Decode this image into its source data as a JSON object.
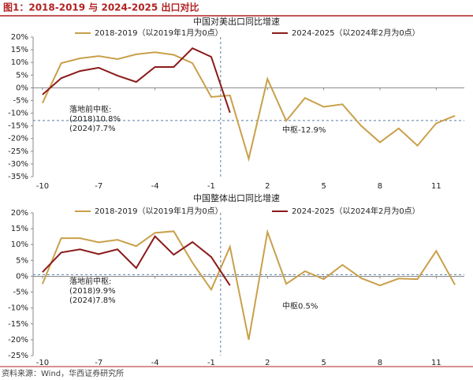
{
  "header": {
    "title": "图1：2018-2019 与 2024-2025 出口对比"
  },
  "footer": {
    "source": "资料来源：Wind，华西证券研究所"
  },
  "chart_data": [
    {
      "type": "line",
      "title": "中国对美出口同比增速",
      "x": [
        -10,
        -9,
        -8,
        -7,
        -6,
        -5,
        -4,
        -3,
        -2,
        -1,
        0,
        1,
        2,
        3,
        4,
        5,
        6,
        7,
        8,
        9,
        10,
        11,
        12
      ],
      "series": [
        {
          "name": "2018-2019（以2019年1月为0点）",
          "color": "#c9a04a",
          "values": [
            -6,
            9.7,
            11.6,
            12.5,
            11.3,
            13.2,
            14,
            13,
            9.7,
            -3.6,
            -3,
            -28,
            3.5,
            -13,
            -4,
            -7.5,
            -6.5,
            -15,
            -21.5,
            -16,
            -22.8,
            -14,
            -11
          ]
        },
        {
          "name": "2024-2025（以2024年2月为0点）",
          "color": "#8b1a1a",
          "values": [
            -2.7,
            3.8,
            6.6,
            7.9,
            4.8,
            2.3,
            8.2,
            8.2,
            15.6,
            12.2,
            -9.8,
            null,
            null,
            null,
            null,
            null,
            null,
            null,
            null,
            null,
            null,
            null,
            null
          ]
        }
      ],
      "xlim": [
        -10.5,
        12.5
      ],
      "ylim": [
        -35,
        20
      ],
      "xticks": [
        -10,
        -7,
        -4,
        -1,
        2,
        5,
        8,
        11
      ],
      "yticks": [
        {
          "value": 20,
          "label": "20%"
        },
        {
          "value": 15,
          "label": "15%"
        },
        {
          "value": 10,
          "label": "10%"
        },
        {
          "value": 5,
          "label": "5%"
        },
        {
          "value": 0,
          "label": "0%"
        },
        {
          "value": -5,
          "label": "-5%"
        },
        {
          "value": -10,
          "label": "-10%"
        },
        {
          "value": -15,
          "label": "-15%"
        },
        {
          "value": -20,
          "label": "-20%"
        },
        {
          "value": -25,
          "label": "-25%"
        },
        {
          "value": -30,
          "label": "-30%"
        },
        {
          "value": -35,
          "label": "-35%"
        }
      ],
      "reference_line": {
        "value": -12.9,
        "label": "中枢-12.9%"
      },
      "vline": -0.5,
      "annotations": [
        "落地前中枢:",
        "(2018)10.8%",
        "(2024)7.7%"
      ]
    },
    {
      "type": "line",
      "title": "中国整体出口同比增速",
      "x": [
        -10,
        -9,
        -8,
        -7,
        -6,
        -5,
        -4,
        -3,
        -2,
        -1,
        0,
        1,
        2,
        3,
        4,
        5,
        6,
        7,
        8,
        9,
        10,
        11,
        12
      ],
      "series": [
        {
          "name": "2018-2019（以2019年1月为0点）",
          "color": "#c9a04a",
          "values": [
            -2.4,
            12,
            12,
            10.7,
            11.5,
            9.5,
            13.7,
            14.2,
            4.3,
            -4.2,
            9.3,
            -20,
            14,
            -2.4,
            1.6,
            -0.9,
            3.6,
            -0.6,
            -2.9,
            -0.7,
            -0.9,
            8,
            -2.7
          ]
        },
        {
          "name": "2024-2025（以2024年2月为0点）",
          "color": "#8b1a1a",
          "values": [
            1.3,
            7.5,
            8.5,
            7,
            8.5,
            2.6,
            12.6,
            6.8,
            10.8,
            6.1,
            -2.9,
            null,
            null,
            null,
            null,
            null,
            null,
            null,
            null,
            null,
            null,
            null,
            null
          ]
        }
      ],
      "xlim": [
        -10.5,
        12.5
      ],
      "ylim": [
        -25,
        20
      ],
      "xticks": [
        -10,
        -7,
        -4,
        -1,
        2,
        5,
        8,
        11
      ],
      "yticks": [
        {
          "value": 20,
          "label": "20%"
        },
        {
          "value": 15,
          "label": "15%"
        },
        {
          "value": 10,
          "label": "10%"
        },
        {
          "value": 5,
          "label": "5%"
        },
        {
          "value": 0,
          "label": "0%"
        },
        {
          "value": -5,
          "label": "-5%"
        },
        {
          "value": -10,
          "label": "-10%"
        },
        {
          "value": -15,
          "label": "-15%"
        },
        {
          "value": -20,
          "label": "-20%"
        },
        {
          "value": -25,
          "label": "-25%"
        }
      ],
      "reference_line": {
        "value": 0.5,
        "label": "中枢0.5%"
      },
      "vline": -0.5,
      "annotations": [
        "落地前中枢:",
        "(2018)9.9%",
        "(2024)7.8%"
      ]
    }
  ]
}
